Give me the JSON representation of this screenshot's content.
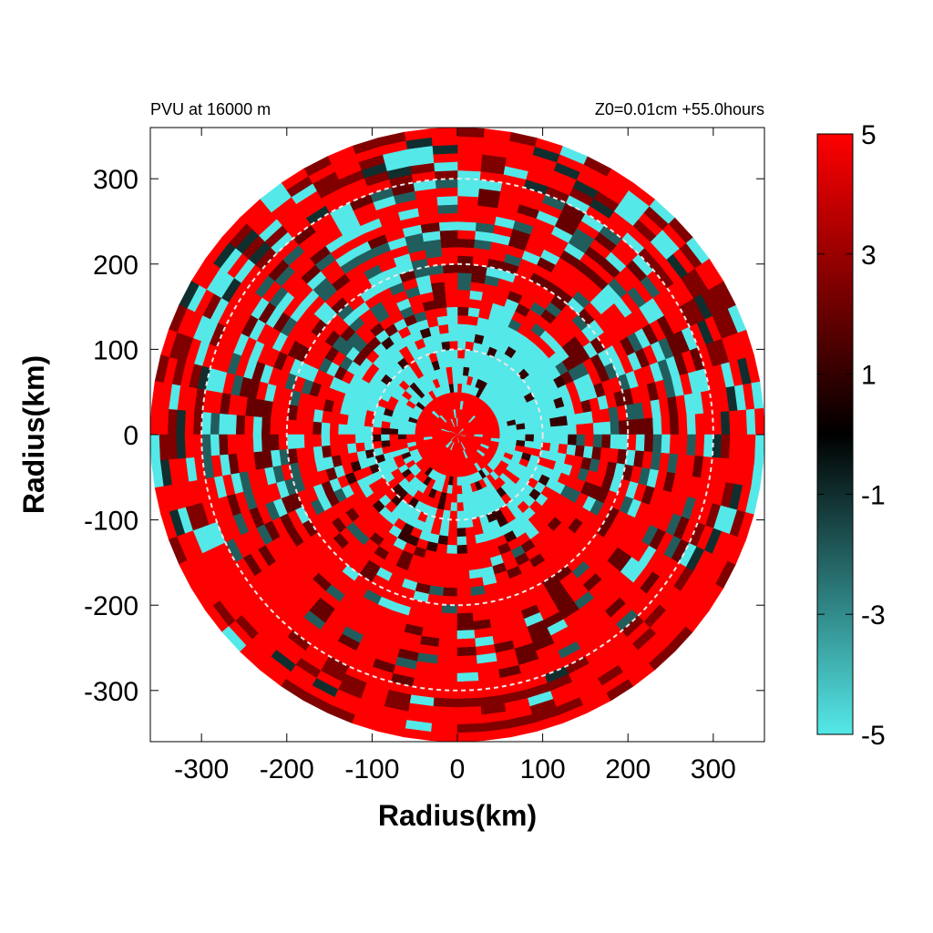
{
  "chart_data": {
    "type": "heatmap",
    "title_left": "PVU at 16000 m",
    "title_right": "Z0=0.01cm  +55.0hours",
    "xlabel": "Radius(km)",
    "ylabel": "Radius(km)",
    "xlim": [
      -360,
      360
    ],
    "ylim": [
      -360,
      360
    ],
    "domain_radius_km": 360,
    "x_ticks": [
      -300,
      -200,
      -100,
      0,
      100,
      200,
      300
    ],
    "y_ticks": [
      300,
      200,
      100,
      0,
      -100,
      -200,
      -300
    ],
    "x_tick_labels": [
      "-300",
      "-200",
      "-100",
      "0",
      "100",
      "200",
      "300"
    ],
    "y_tick_labels": [
      "300",
      "200",
      "100",
      "0",
      "-100",
      "-200",
      "-300"
    ],
    "reference_circles_km": [
      100,
      200,
      300
    ],
    "colorbar": {
      "min": -5,
      "max": 5,
      "ticks": [
        5,
        3,
        1,
        -1,
        -3,
        -5
      ],
      "tick_labels": [
        "5",
        "3",
        "1",
        "-1",
        "-3",
        "-5"
      ],
      "colors": [
        {
          "value": -5,
          "color": "#55e8e8"
        },
        {
          "value": -2.5,
          "color": "#2a7474"
        },
        {
          "value": 0,
          "color": "#000000"
        },
        {
          "value": 2.5,
          "color": "#800000"
        },
        {
          "value": 5,
          "color": "#ff0000"
        }
      ]
    },
    "field_description": {
      "core_value": 5,
      "negative_ring_inner_km": 60,
      "negative_ring_outer_km": 140,
      "background_value": 5,
      "grid_resolution_km": 10
    }
  }
}
